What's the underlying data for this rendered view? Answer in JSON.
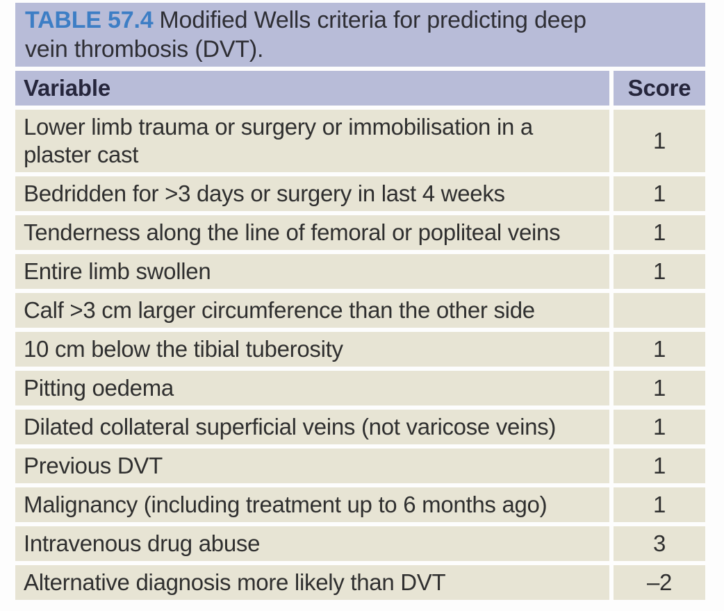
{
  "table": {
    "label": "TABLE 57.4",
    "title": "Modified Wells criteria for predicting deep vein thrombosis (DVT).",
    "columns": [
      "Variable",
      "Score"
    ],
    "rows": [
      {
        "variable": "Lower limb trauma or surgery or immobilisation in a plaster cast",
        "score": "1"
      },
      {
        "variable": "Bedridden for >3 days or surgery in last 4 weeks",
        "score": "1"
      },
      {
        "variable": "Tenderness along the line of femoral or popliteal veins",
        "score": "1"
      },
      {
        "variable": "Entire limb swollen",
        "score": "1"
      },
      {
        "variable": "Calf >3 cm larger circumference than the other side",
        "score": ""
      },
      {
        "variable": "10 cm below the tibial tuberosity",
        "score": "1"
      },
      {
        "variable": "Pitting oedema",
        "score": "1"
      },
      {
        "variable": "Dilated collateral superficial veins (not varicose veins)",
        "score": "1"
      },
      {
        "variable": "Previous DVT",
        "score": "1"
      },
      {
        "variable": "Malignancy (including treatment up to 6 months ago)",
        "score": "1"
      },
      {
        "variable": "Intravenous drug abuse",
        "score": "3"
      },
      {
        "variable": "Alternative diagnosis more likely than DVT",
        "score": "–2"
      }
    ],
    "colors": {
      "band_bg": "#b8bcd8",
      "row_bg": "#e7e4d4",
      "table_number_blue": "#3d7ec5",
      "body_text": "#2f2f2f",
      "page_bg": "#fdfdfd"
    }
  }
}
